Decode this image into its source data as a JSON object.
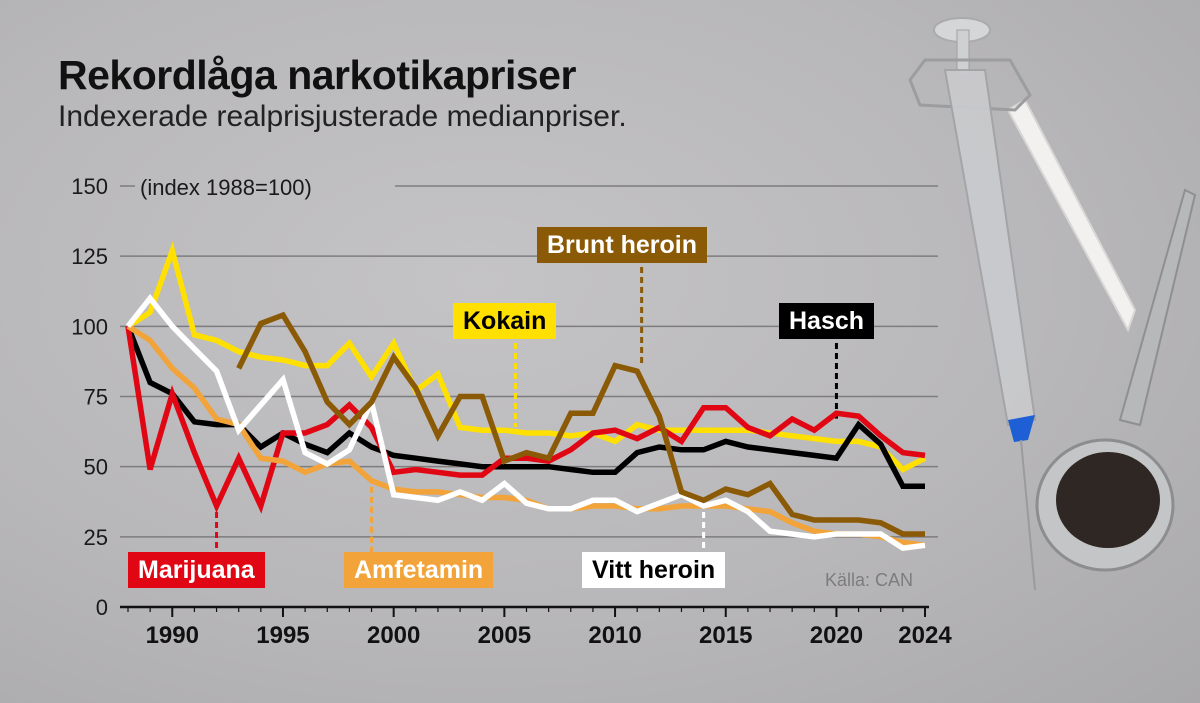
{
  "header": {
    "title": "Rekordlåga narkotikapriser",
    "subtitle": "Indexerade realprisjusterade medianpriser."
  },
  "source": "Källa: CAN",
  "labels": {
    "marijuana": {
      "text": "Marijuana",
      "bg": "#e00613",
      "fg": "#ffffff"
    },
    "amfetamin": {
      "text": "Amfetamin",
      "bg": "#f2a43a",
      "fg": "#ffffff"
    },
    "vitt_heroin": {
      "text": "Vitt heroin",
      "bg": "#ffffff",
      "fg": "#000000"
    },
    "kokain": {
      "text": "Kokain",
      "bg": "#ffe000",
      "fg": "#000000"
    },
    "brunt_heroin": {
      "text": "Brunt heroin",
      "bg": "#8b5a06",
      "fg": "#ffffff"
    },
    "hasch": {
      "text": "Hasch",
      "bg": "#000000",
      "fg": "#ffffff"
    }
  },
  "chart_data": {
    "type": "line",
    "title": "Rekordlåga narkotikapriser",
    "subtitle": "Indexerade realprisjusterade medianpriser.",
    "xlabel": "",
    "ylabel": "(index 1988=100)",
    "ylim": [
      0,
      150
    ],
    "yticks": [
      0,
      25,
      50,
      75,
      100,
      125,
      150
    ],
    "xlim": [
      1988,
      2024
    ],
    "xticks": [
      1990,
      1995,
      2000,
      2005,
      2010,
      2015,
      2020,
      2024
    ],
    "grid": true,
    "legend_position": "inline labels",
    "source": "Källa: CAN",
    "x": [
      1988,
      1989,
      1990,
      1991,
      1992,
      1993,
      1994,
      1995,
      1996,
      1997,
      1998,
      1999,
      2000,
      2001,
      2002,
      2003,
      2004,
      2005,
      2006,
      2007,
      2008,
      2009,
      2010,
      2011,
      2012,
      2013,
      2014,
      2015,
      2016,
      2017,
      2018,
      2019,
      2020,
      2021,
      2022,
      2023,
      2024
    ],
    "series": [
      {
        "name": "Kokain",
        "color": "#ffe000",
        "values": [
          100,
          105,
          127,
          97,
          95,
          91,
          89,
          88,
          86,
          86,
          94,
          82,
          94,
          77,
          83,
          64,
          63,
          63,
          62,
          62,
          61,
          62,
          59,
          65,
          63,
          63,
          63,
          63,
          63,
          62,
          61,
          60,
          59,
          59,
          57,
          49,
          53
        ]
      },
      {
        "name": "Hasch",
        "color": "#000000",
        "values": [
          100,
          80,
          76,
          66,
          65,
          65,
          57,
          62,
          58,
          55,
          62,
          57,
          54,
          53,
          52,
          51,
          50,
          50,
          50,
          50,
          49,
          48,
          48,
          55,
          57,
          56,
          56,
          59,
          57,
          56,
          55,
          54,
          53,
          65,
          58,
          43,
          43
        ]
      },
      {
        "name": "Marijuana",
        "color": "#e00613",
        "values": [
          100,
          49,
          76,
          55,
          36,
          53,
          36,
          62,
          62,
          65,
          72,
          64,
          48,
          49,
          48,
          47,
          47,
          53,
          53,
          52,
          56,
          62,
          63,
          60,
          64,
          59,
          71,
          71,
          64,
          61,
          67,
          63,
          69,
          68,
          61,
          55,
          54
        ]
      },
      {
        "name": "Amfetamin",
        "color": "#f2a43a",
        "values": [
          100,
          95,
          85,
          78,
          67,
          65,
          53,
          52,
          48,
          51,
          52,
          45,
          42,
          41,
          41,
          40,
          39,
          39,
          38,
          35,
          35,
          36,
          36,
          35,
          35,
          36,
          36,
          36,
          35,
          34,
          30,
          27,
          26,
          26,
          25,
          23,
          22
        ]
      },
      {
        "name": "Vitt heroin",
        "color": "#ffffff",
        "values": [
          null,
          null,
          null,
          null,
          null,
          null,
          null,
          null,
          null,
          null,
          null,
          null,
          null,
          null,
          null,
          null,
          null,
          null,
          null,
          null,
          null,
          null,
          null,
          null,
          null,
          null,
          null,
          null,
          null,
          null,
          null,
          null,
          null,
          null,
          null,
          null,
          null
        ],
        "values_full": [
          100,
          110,
          100,
          92,
          84,
          63,
          72,
          81,
          55,
          51,
          56,
          73,
          40,
          39,
          38,
          41,
          38,
          44,
          37,
          35,
          35,
          38,
          38,
          34,
          37,
          40,
          36,
          38,
          34,
          27,
          26,
          25,
          26,
          26,
          26,
          21,
          22
        ]
      },
      {
        "name": "Brunt heroin",
        "color": "#8b5a06",
        "values": [
          null,
          null,
          null,
          null,
          null,
          85,
          101,
          104,
          91,
          73,
          65,
          73,
          89,
          78,
          61,
          75,
          75,
          52,
          55,
          53,
          69,
          69,
          86,
          84,
          68,
          41,
          38,
          42,
          40,
          44,
          33,
          31,
          31,
          31,
          30,
          26,
          26
        ]
      }
    ]
  },
  "decoration": {
    "image_description": "syringe, chalk-like powder stick and spoon with dark substance",
    "syringe_cap_color": "#1e5fd6"
  }
}
